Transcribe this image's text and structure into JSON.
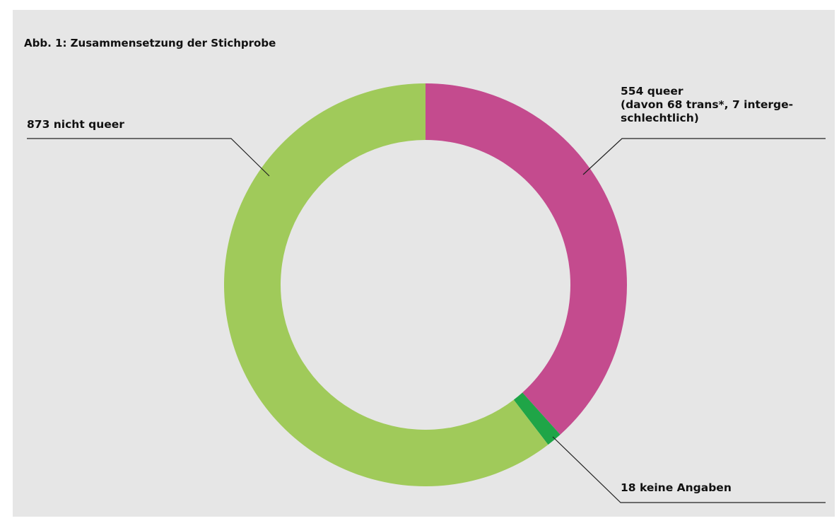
{
  "chart_data": {
    "type": "pie",
    "variant": "donut",
    "title": "Abb. 1: Zusammensetzung der Stichprobe",
    "slices": [
      {
        "name": "queer",
        "value": 554,
        "color": "#c44b8e",
        "label_lines": [
          "554 queer",
          "(davon 68 trans*, 7 interge-",
          "schlechtlich)"
        ]
      },
      {
        "name": "keine Angaben",
        "value": 18,
        "color": "#1fa547",
        "label_lines": [
          "18 keine Angaben"
        ]
      },
      {
        "name": "nicht queer",
        "value": 873,
        "color": "#a0ca5a",
        "label_lines": [
          "873 nicht queer"
        ]
      }
    ]
  },
  "colors": {
    "background": "#e6e6e6",
    "text": "#111111",
    "leader": "#222222"
  }
}
